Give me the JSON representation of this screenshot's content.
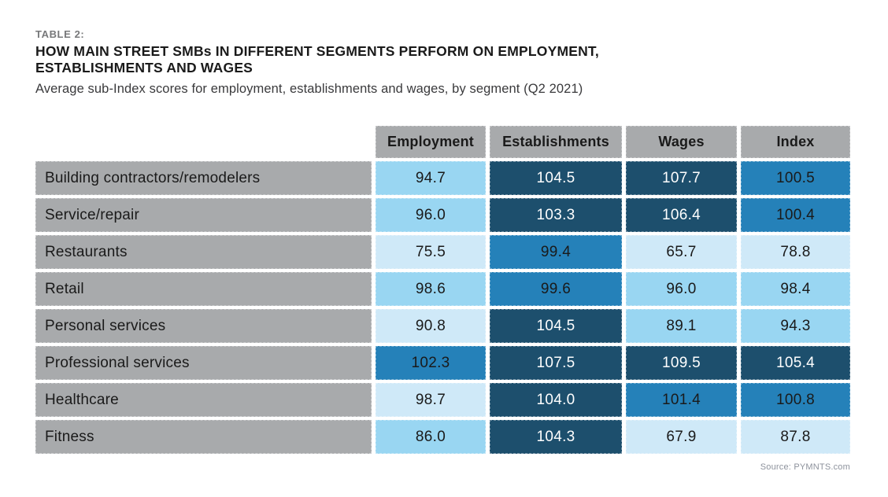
{
  "page": {
    "table_label": "TABLE 2:",
    "title_line1": "HOW MAIN STREET SMBs IN DIFFERENT SEGMENTS PERFORM ON EMPLOYMENT,",
    "title_line2": "ESTABLISHMENTS AND WAGES",
    "subtitle": "Average sub-Index scores for employment, establishments and wages, by segment (Q2 2021)",
    "source": "Source: PYMNTS.com"
  },
  "colors": {
    "header_gray": "#a8aaac",
    "label_gray": "#a8aaac",
    "shade_light": "#cfe9f8",
    "shade_sky": "#99d6f2",
    "shade_medium": "#2581b9",
    "shade_navy": "#1d4f6d",
    "text_dark": "#1a1a1a",
    "text_light": "#ffffff"
  },
  "chart_data": {
    "type": "table",
    "title": "HOW MAIN STREET SMBs IN DIFFERENT SEGMENTS PERFORM ON EMPLOYMENT, ESTABLISHMENTS AND WAGES",
    "subtitle": "Average sub-Index scores for employment, establishments and wages, by segment (Q2 2021)",
    "columns": [
      "Employment",
      "Establishments",
      "Wages",
      "Index"
    ],
    "rows": [
      {
        "label": "Building contractors/remodelers",
        "values": [
          "94.7",
          "104.5",
          "107.7",
          "100.5"
        ],
        "shades": [
          "sky",
          "navy",
          "navy",
          "medium"
        ]
      },
      {
        "label": "Service/repair",
        "values": [
          "96.0",
          "103.3",
          "106.4",
          "100.4"
        ],
        "shades": [
          "sky",
          "navy",
          "navy",
          "medium"
        ]
      },
      {
        "label": "Restaurants",
        "values": [
          "75.5",
          "99.4",
          "65.7",
          "78.8"
        ],
        "shades": [
          "light",
          "medium",
          "light",
          "light"
        ]
      },
      {
        "label": "Retail",
        "values": [
          "98.6",
          "99.6",
          "96.0",
          "98.4"
        ],
        "shades": [
          "sky",
          "medium",
          "sky",
          "sky"
        ]
      },
      {
        "label": "Personal services",
        "values": [
          "90.8",
          "104.5",
          "89.1",
          "94.3"
        ],
        "shades": [
          "light",
          "navy",
          "sky",
          "sky"
        ]
      },
      {
        "label": "Professional services",
        "values": [
          "102.3",
          "107.5",
          "109.5",
          "105.4"
        ],
        "shades": [
          "medium",
          "navy",
          "navy",
          "navy"
        ]
      },
      {
        "label": "Healthcare",
        "values": [
          "98.7",
          "104.0",
          "101.4",
          "100.8"
        ],
        "shades": [
          "light",
          "navy",
          "medium",
          "medium"
        ]
      },
      {
        "label": "Fitness",
        "values": [
          "86.0",
          "104.3",
          "67.9",
          "87.8"
        ],
        "shades": [
          "sky",
          "navy",
          "light",
          "light"
        ]
      }
    ]
  }
}
